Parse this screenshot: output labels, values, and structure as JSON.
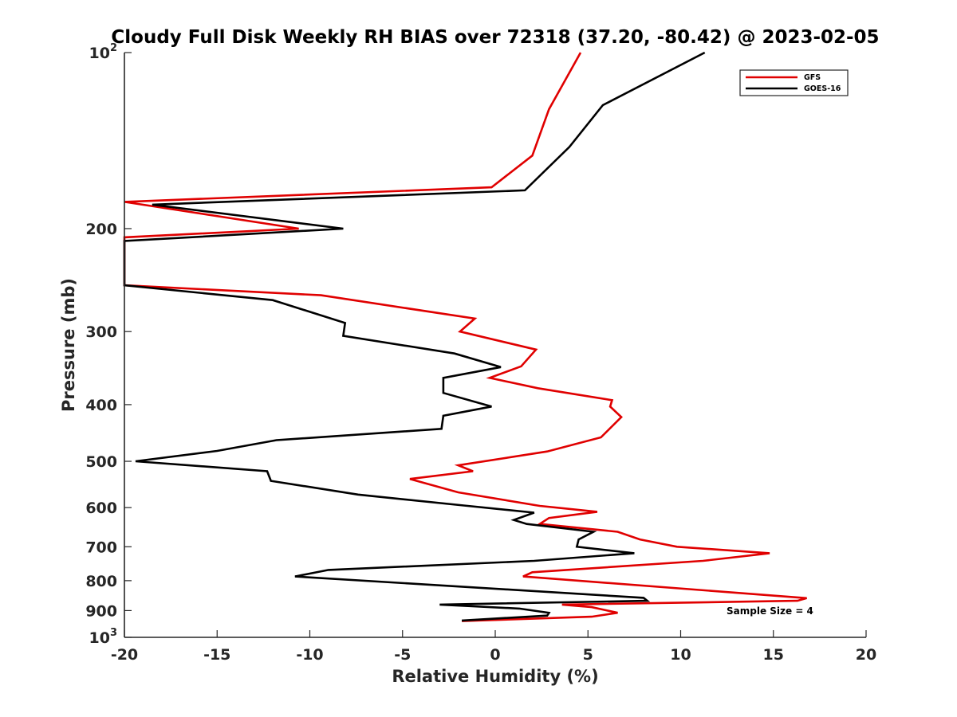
{
  "chart_data": {
    "type": "line",
    "title": "Cloudy Full Disk Weekly RH BIAS over 72318 (37.20, -80.42) @ 2023-02-05",
    "xlabel": "Relative Humidity (%)",
    "ylabel": "Pressure (mb)",
    "xlim": [
      -20,
      20
    ],
    "ylim": [
      100,
      1000
    ],
    "yscale": "log",
    "yreversed": true,
    "x_ticks": [
      "-20",
      "-15",
      "-10",
      "-5",
      "0",
      "5",
      "10",
      "15",
      "20"
    ],
    "y_ticks": [
      {
        "value": 100,
        "base": "10",
        "exp": "2"
      },
      {
        "value": 200,
        "label": "200"
      },
      {
        "value": 300,
        "label": "300"
      },
      {
        "value": 400,
        "label": "400"
      },
      {
        "value": 500,
        "label": "500"
      },
      {
        "value": 600,
        "label": "600"
      },
      {
        "value": 700,
        "label": "700"
      },
      {
        "value": 800,
        "label": "800"
      },
      {
        "value": 900,
        "label": "900"
      },
      {
        "value": 1000,
        "base": "10",
        "exp": "3"
      }
    ],
    "legend_position": "top-right",
    "annotation": "Sample Size = 4",
    "series": [
      {
        "name": "GFS",
        "color": "#e00000",
        "points": [
          [
            4.6,
            100
          ],
          [
            2.9,
            125
          ],
          [
            2.0,
            150
          ],
          [
            -0.2,
            170
          ],
          [
            -20.0,
            180
          ],
          [
            -10.6,
            200
          ],
          [
            -20.0,
            207
          ],
          [
            -20.0,
            250
          ],
          [
            -9.4,
            260
          ],
          [
            -1.1,
            285
          ],
          [
            -1.9,
            300
          ],
          [
            2.2,
            322
          ],
          [
            1.4,
            344
          ],
          [
            -0.3,
            360
          ],
          [
            2.3,
            375
          ],
          [
            6.3,
            393
          ],
          [
            6.2,
            403
          ],
          [
            6.8,
            420
          ],
          [
            5.7,
            455
          ],
          [
            2.8,
            481
          ],
          [
            -2.0,
            508
          ],
          [
            -1.2,
            520
          ],
          [
            -4.6,
            536
          ],
          [
            -2.0,
            565
          ],
          [
            2.4,
            596
          ],
          [
            5.5,
            610
          ],
          [
            2.9,
            625
          ],
          [
            2.4,
            640
          ],
          [
            6.6,
            660
          ],
          [
            7.8,
            680
          ],
          [
            9.8,
            700
          ],
          [
            14.8,
            718
          ],
          [
            11.2,
            740
          ],
          [
            2.0,
            774
          ],
          [
            1.5,
            787
          ],
          [
            16.8,
            857
          ],
          [
            16.3,
            866
          ],
          [
            3.6,
            879
          ],
          [
            5.2,
            888
          ],
          [
            6.6,
            908
          ],
          [
            5.2,
            922
          ],
          [
            -1.8,
            938
          ]
        ]
      },
      {
        "name": "GOES-16",
        "color": "#000000",
        "points": [
          [
            11.3,
            100
          ],
          [
            5.8,
            123
          ],
          [
            4.0,
            145
          ],
          [
            1.6,
            172
          ],
          [
            -18.5,
            182
          ],
          [
            -8.2,
            200
          ],
          [
            -20.0,
            210
          ],
          [
            -20.0,
            250
          ],
          [
            -12.0,
            265
          ],
          [
            -8.1,
            290
          ],
          [
            -8.2,
            305
          ],
          [
            -2.2,
            327
          ],
          [
            0.3,
            345
          ],
          [
            -2.8,
            360
          ],
          [
            -2.8,
            382
          ],
          [
            -0.2,
            403
          ],
          [
            -2.8,
            418
          ],
          [
            -2.9,
            440
          ],
          [
            -11.8,
            460
          ],
          [
            -15.0,
            480
          ],
          [
            -19.4,
            500
          ],
          [
            -12.3,
            520
          ],
          [
            -12.1,
            540
          ],
          [
            -7.4,
            570
          ],
          [
            -1.7,
            595
          ],
          [
            2.1,
            612
          ],
          [
            1.0,
            630
          ],
          [
            1.7,
            640
          ],
          [
            5.3,
            660
          ],
          [
            4.5,
            680
          ],
          [
            4.4,
            700
          ],
          [
            7.5,
            718
          ],
          [
            2.1,
            740
          ],
          [
            -9.0,
            767
          ],
          [
            -10.8,
            787
          ],
          [
            8.0,
            856
          ],
          [
            8.2,
            866
          ],
          [
            -3.0,
            879
          ],
          [
            1.3,
            893
          ],
          [
            2.9,
            908
          ],
          [
            2.8,
            918
          ],
          [
            -1.8,
            936
          ]
        ]
      }
    ]
  }
}
